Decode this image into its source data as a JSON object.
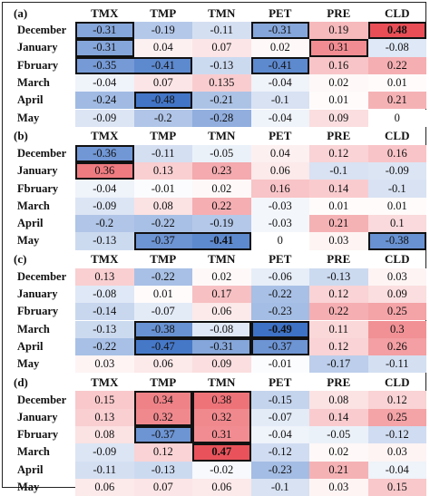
{
  "chart_data": {
    "type": "heatmap",
    "columns": [
      "TMX",
      "TMP",
      "TMN",
      "PET",
      "PRE",
      "CLD"
    ],
    "panels": [
      {
        "label": "(a)",
        "rows": [
          {
            "month": "December",
            "values": [
              "-0.31",
              "-0.19",
              "-0.11",
              "-0.31",
              "0.19",
              "0.48"
            ]
          },
          {
            "month": "January",
            "values": [
              "-0.31",
              "0.04",
              "0.07",
              "0.02",
              "0.31",
              "-0.08"
            ]
          },
          {
            "month": "Fbruary",
            "values": [
              "-0.35",
              "-0.41",
              "-0.13",
              "-0.41",
              "0.16",
              "0.22"
            ]
          },
          {
            "month": "March",
            "values": [
              "-0.04",
              "0.07",
              "0.135",
              "-0.04",
              "0.02",
              "0.01"
            ]
          },
          {
            "month": "April",
            "values": [
              "-0.24",
              "-0.48",
              "-0.21",
              "-0.1",
              "0.01",
              "0.21"
            ]
          },
          {
            "month": "May",
            "values": [
              "-0.09",
              "-0.2",
              "-0.28",
              "-0.04",
              "0.09",
              "0"
            ]
          }
        ],
        "bold_cells": [
          [
            0,
            5
          ]
        ],
        "boxes": [
          [
            0,
            0,
            0,
            0
          ],
          [
            1,
            1,
            0,
            0
          ],
          [
            2,
            2,
            0,
            1
          ],
          [
            0,
            0,
            3,
            3
          ],
          [
            2,
            2,
            3,
            3
          ],
          [
            4,
            4,
            1,
            1
          ],
          [
            0,
            0,
            5,
            5
          ],
          [
            1,
            1,
            4,
            4
          ]
        ]
      },
      {
        "label": "(b)",
        "rows": [
          {
            "month": "December",
            "values": [
              "-0.36",
              "-0.11",
              "-0.05",
              "0.04",
              "0.12",
              "0.16"
            ]
          },
          {
            "month": "January",
            "values": [
              "0.36",
              "0.13",
              "0.23",
              "0.06",
              "-0.1",
              "-0.09"
            ]
          },
          {
            "month": "Fbruary",
            "values": [
              "-0.04",
              "-0.01",
              "0.02",
              "0.16",
              "0.14",
              "-0.1"
            ]
          },
          {
            "month": "March",
            "values": [
              "-0.09",
              "0.08",
              "0.22",
              "-0.03",
              "0.01",
              "0.01"
            ]
          },
          {
            "month": "April",
            "values": [
              "-0.2",
              "-0.22",
              "-0.19",
              "-0.03",
              "0.21",
              "0.1"
            ]
          },
          {
            "month": "May",
            "values": [
              "-0.13",
              "-0.37",
              "-0.41",
              "0",
              "0.03",
              "-0.38"
            ]
          }
        ],
        "bold_cells": [
          [
            5,
            2
          ]
        ],
        "boxes": [
          [
            0,
            0,
            0,
            0
          ],
          [
            1,
            1,
            0,
            0
          ],
          [
            5,
            5,
            1,
            2
          ],
          [
            5,
            5,
            5,
            5
          ]
        ]
      },
      {
        "label": "(c)",
        "rows": [
          {
            "month": "December",
            "values": [
              "0.13",
              "-0.22",
              "0.02",
              "-0.06",
              "-0.13",
              "0.03"
            ]
          },
          {
            "month": "January",
            "values": [
              "-0.08",
              "0.01",
              "0.17",
              "-0.22",
              "0.12",
              "0.09"
            ]
          },
          {
            "month": "Fbruary",
            "values": [
              "-0.14",
              "-0.07",
              "0.06",
              "-0.23",
              "0.22",
              "0.25"
            ]
          },
          {
            "month": "March",
            "values": [
              "-0.13",
              "-0.38",
              "-0.08",
              "-0.49",
              "0.11",
              "0.3"
            ]
          },
          {
            "month": "April",
            "values": [
              "-0.22",
              "-0.47",
              "-0.31",
              "-0.37",
              "0.12",
              "0.26"
            ]
          },
          {
            "month": "May",
            "values": [
              "0.03",
              "0.06",
              "0.09",
              "-0.01",
              "-0.17",
              "-0.11"
            ]
          }
        ],
        "bold_cells": [
          [
            3,
            3
          ]
        ],
        "boxes": [
          [
            3,
            3,
            1,
            2
          ],
          [
            4,
            4,
            1,
            2
          ],
          [
            3,
            3,
            3,
            3
          ],
          [
            4,
            4,
            3,
            3
          ]
        ]
      },
      {
        "label": "(d)",
        "rows": [
          {
            "month": "December",
            "values": [
              "0.15",
              "0.34",
              "0.38",
              "-0.15",
              "0.08",
              "0.12"
            ]
          },
          {
            "month": "January",
            "values": [
              "0.13",
              "0.32",
              "0.32",
              "-0.07",
              "0.14",
              "0.25"
            ]
          },
          {
            "month": "Fbruary",
            "values": [
              "0.08",
              "-0.37",
              "0.31",
              "-0.04",
              "-0.05",
              "-0.12"
            ]
          },
          {
            "month": "March",
            "values": [
              "-0.09",
              "0.12",
              "0.47",
              "-0.12",
              "0.02",
              "0.03"
            ]
          },
          {
            "month": "April",
            "values": [
              "-0.11",
              "-0.13",
              "-0.02",
              "-0.23",
              "0.21",
              "-0.04"
            ]
          },
          {
            "month": "May",
            "values": [
              "0.06",
              "0.07",
              "0.06",
              "-0.1",
              "0.03",
              "0.15"
            ]
          }
        ],
        "bold_cells": [
          [
            3,
            2
          ]
        ],
        "boxes": [
          [
            0,
            1,
            1,
            1
          ],
          [
            0,
            2,
            2,
            2
          ],
          [
            2,
            2,
            1,
            1
          ],
          [
            3,
            3,
            2,
            2
          ]
        ]
      }
    ],
    "colors": {
      "negative": "#3a6fc4",
      "positive": "#e8474f",
      "neutral": "#ffffff"
    },
    "grid": false,
    "legend": "none"
  }
}
